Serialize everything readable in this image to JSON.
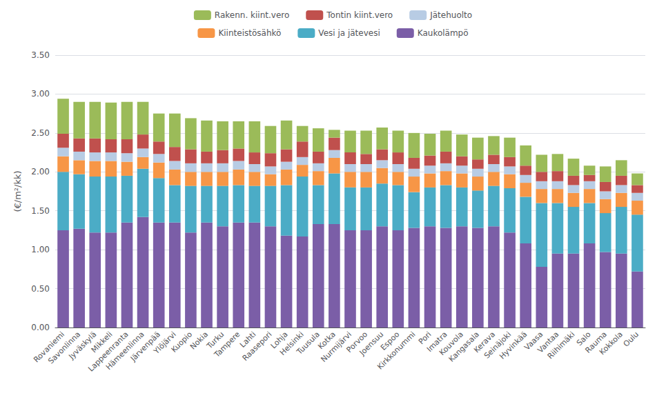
{
  "chart_data": {
    "type": "bar",
    "stacked": true,
    "ylabel": "(€/m²/kk)",
    "categories": [
      "Rovaniemi",
      "Savonlinna",
      "Jyväskylä",
      "Mikkeli",
      "Lappeenranta",
      "Hämeenlinna",
      "Järvenpää",
      "Ylöjärvi",
      "Kuopio",
      "Nokia",
      "Turku",
      "Tampere",
      "Lahti",
      "Raasepori",
      "Lohja",
      "Helsinki",
      "Tuusula",
      "Kotka",
      "Nurmijärvi",
      "Porvoo",
      "Joensuu",
      "Espoo",
      "Kirkkonummi",
      "Pori",
      "Imatra",
      "Kouvola",
      "Kangasala",
      "Kerava",
      "Seinäjoki",
      "Hyvinkää",
      "Vaasa",
      "Vantaa",
      "Riihimäki",
      "Salo",
      "Rauma",
      "Kokkola",
      "Oulu"
    ],
    "series": [
      {
        "name": "Kaukolämpö",
        "color": "#7B5EA7",
        "values": [
          1.25,
          1.27,
          1.22,
          1.22,
          1.35,
          1.42,
          1.35,
          1.35,
          1.22,
          1.35,
          1.3,
          1.35,
          1.35,
          1.3,
          1.18,
          1.17,
          1.33,
          1.33,
          1.25,
          1.25,
          1.3,
          1.25,
          1.28,
          1.3,
          1.28,
          1.3,
          1.28,
          1.3,
          1.22,
          1.08,
          0.78,
          0.95,
          0.95,
          1.08,
          0.97,
          0.95,
          0.72
        ]
      },
      {
        "name": "Vesi ja jätevesi",
        "color": "#4BACC6",
        "values": [
          0.75,
          0.7,
          0.72,
          0.72,
          0.6,
          0.62,
          0.57,
          0.48,
          0.6,
          0.47,
          0.52,
          0.48,
          0.47,
          0.52,
          0.65,
          0.77,
          0.5,
          0.65,
          0.55,
          0.55,
          0.55,
          0.58,
          0.46,
          0.5,
          0.55,
          0.5,
          0.48,
          0.52,
          0.57,
          0.6,
          0.82,
          0.65,
          0.6,
          0.52,
          0.5,
          0.6,
          0.73
        ]
      },
      {
        "name": "Kiinteistösähkö",
        "color": "#F79646",
        "values": [
          0.2,
          0.18,
          0.2,
          0.2,
          0.18,
          0.15,
          0.2,
          0.2,
          0.18,
          0.18,
          0.18,
          0.2,
          0.18,
          0.15,
          0.2,
          0.15,
          0.18,
          0.2,
          0.2,
          0.2,
          0.2,
          0.17,
          0.2,
          0.18,
          0.18,
          0.18,
          0.18,
          0.18,
          0.18,
          0.18,
          0.18,
          0.18,
          0.18,
          0.18,
          0.18,
          0.18,
          0.18
        ]
      },
      {
        "name": "Jätehuolto",
        "color": "#B8CCE4",
        "values": [
          0.11,
          0.11,
          0.11,
          0.11,
          0.11,
          0.11,
          0.11,
          0.11,
          0.11,
          0.11,
          0.11,
          0.11,
          0.1,
          0.1,
          0.1,
          0.1,
          0.1,
          0.1,
          0.1,
          0.1,
          0.1,
          0.1,
          0.1,
          0.1,
          0.1,
          0.1,
          0.1,
          0.1,
          0.1,
          0.1,
          0.1,
          0.1,
          0.1,
          0.1,
          0.1,
          0.1,
          0.1
        ]
      },
      {
        "name": "Tontin kiint.vero",
        "color": "#C0504D",
        "values": [
          0.18,
          0.17,
          0.18,
          0.17,
          0.18,
          0.18,
          0.16,
          0.18,
          0.18,
          0.15,
          0.17,
          0.16,
          0.15,
          0.17,
          0.16,
          0.2,
          0.15,
          0.16,
          0.15,
          0.13,
          0.14,
          0.15,
          0.14,
          0.13,
          0.15,
          0.12,
          0.12,
          0.12,
          0.12,
          0.12,
          0.12,
          0.13,
          0.12,
          0.08,
          0.12,
          0.12,
          0.1
        ]
      },
      {
        "name": "Rakenn. kiint.vero",
        "color": "#9BBB59",
        "values": [
          0.45,
          0.47,
          0.47,
          0.47,
          0.48,
          0.42,
          0.36,
          0.43,
          0.4,
          0.4,
          0.37,
          0.35,
          0.4,
          0.35,
          0.37,
          0.2,
          0.3,
          0.1,
          0.28,
          0.3,
          0.28,
          0.28,
          0.32,
          0.28,
          0.27,
          0.28,
          0.28,
          0.24,
          0.25,
          0.26,
          0.22,
          0.22,
          0.22,
          0.12,
          0.2,
          0.2,
          0.15
        ]
      }
    ],
    "ylim": [
      0,
      3.5
    ],
    "yticks": [
      {
        "value": 0,
        "label": "0.00"
      },
      {
        "value": 0.5,
        "label": "0.50"
      },
      {
        "value": 1,
        "label": "1.00"
      },
      {
        "value": 1.5,
        "label": "1.50"
      },
      {
        "value": 2,
        "label": "2.00"
      },
      {
        "value": 2.5,
        "label": "2.50"
      },
      {
        "value": 3,
        "label": "3.00"
      },
      {
        "value": 3.5,
        "label": "3.50"
      }
    ],
    "grid": true,
    "legend": "top"
  }
}
